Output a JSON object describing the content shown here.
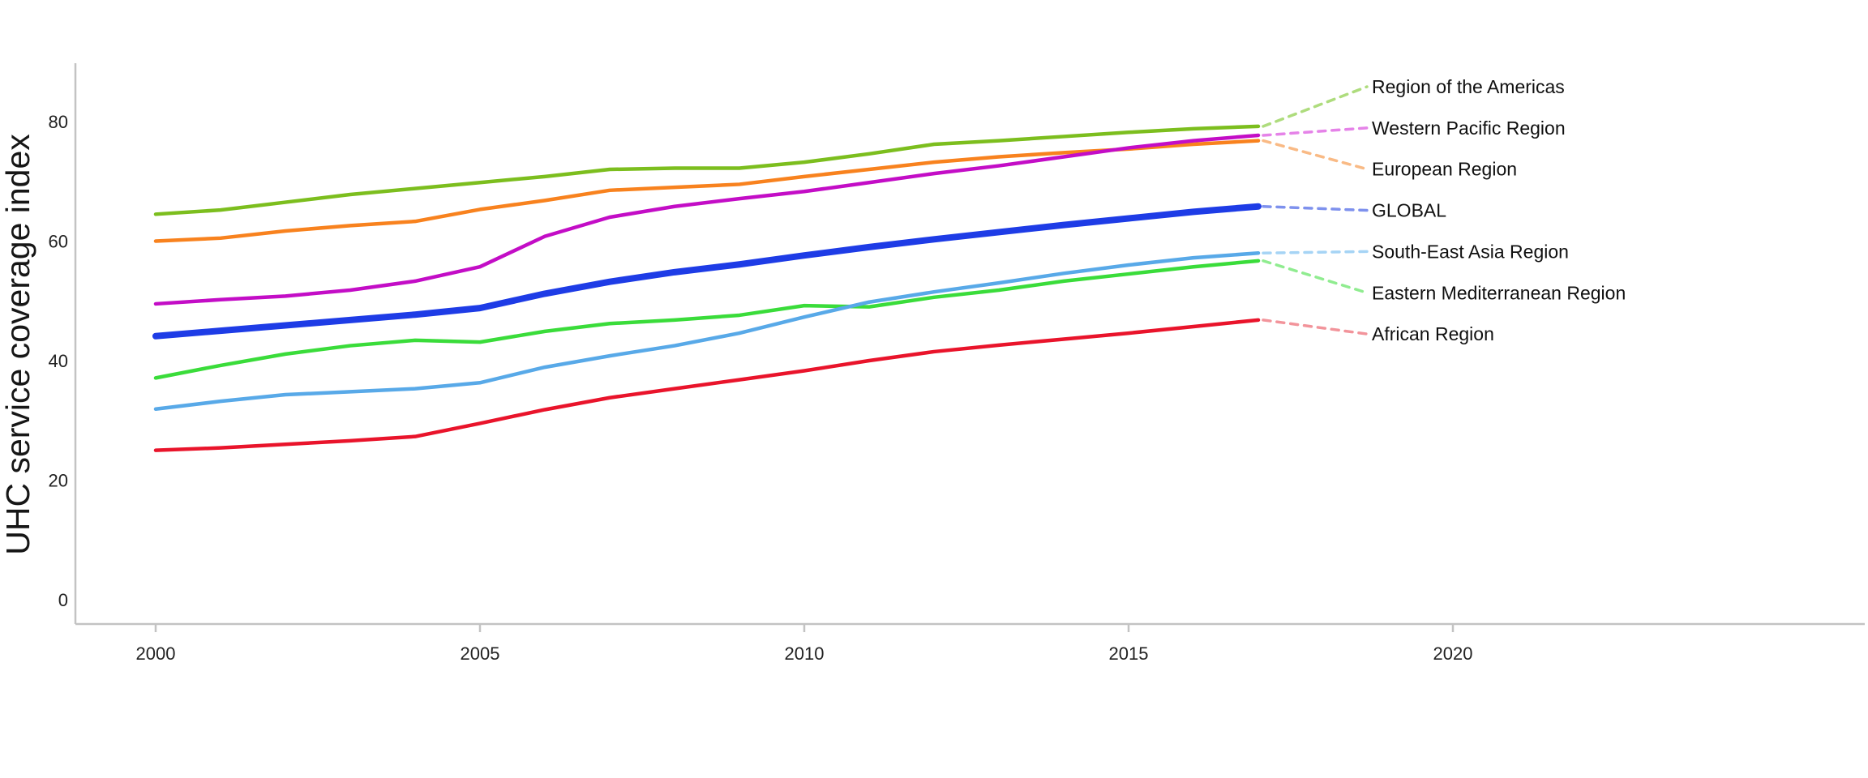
{
  "page": {
    "background": "#ffffff"
  },
  "chart_data": {
    "type": "line",
    "title": "",
    "xlabel": "",
    "ylabel": "UHC service coverage index",
    "x": [
      2000,
      2001,
      2002,
      2003,
      2004,
      2005,
      2006,
      2007,
      2008,
      2009,
      2010,
      2011,
      2012,
      2013,
      2014,
      2015,
      2016,
      2017
    ],
    "x_axis_ticks": [
      2000,
      2005,
      2010,
      2015,
      2020
    ],
    "y_axis_ticks": [
      0,
      20,
      40,
      60,
      80
    ],
    "xlim": [
      2000,
      2020
    ],
    "ylim": [
      0,
      88
    ],
    "grid": false,
    "legend_position": "right-edge direct labels connected by dashed leader lines",
    "axis_color": "#C3C3C3",
    "tick_label_color": "#222222",
    "series": [
      {
        "name": "Region of the Americas",
        "color": "#7CBE1E",
        "leader_color": "#AEDC7D",
        "line_width": 4.5,
        "values": [
          64.5,
          65.2,
          66.5,
          67.8,
          68.8,
          69.8,
          70.8,
          72.0,
          72.2,
          72.2,
          73.2,
          74.6,
          76.2,
          76.8,
          77.5,
          78.2,
          78.8,
          79.2
        ]
      },
      {
        "name": "Western Pacific Region",
        "color": "#C30DC6",
        "leader_color": "#E583E8",
        "line_width": 4.5,
        "values": [
          49.5,
          50.2,
          50.8,
          51.8,
          53.3,
          55.7,
          60.8,
          64.0,
          65.8,
          67.1,
          68.3,
          69.8,
          71.3,
          72.6,
          74.1,
          75.6,
          76.8,
          77.7
        ]
      },
      {
        "name": "European Region",
        "color": "#F8821E",
        "leader_color": "#F9BA85",
        "line_width": 4.5,
        "values": [
          60.0,
          60.5,
          61.7,
          62.6,
          63.3,
          65.3,
          66.8,
          68.5,
          69.0,
          69.5,
          70.8,
          72.0,
          73.2,
          74.1,
          74.8,
          75.4,
          76.2,
          76.8
        ]
      },
      {
        "name": "GLOBAL",
        "color": "#1E3CE6",
        "leader_color": "#7E91ED",
        "line_width": 8,
        "values": [
          44.1,
          45.0,
          45.9,
          46.8,
          47.7,
          48.8,
          51.2,
          53.2,
          54.8,
          56.1,
          57.6,
          59.0,
          60.3,
          61.5,
          62.7,
          63.8,
          64.9,
          65.8
        ]
      },
      {
        "name": "South-East Asia Region",
        "color": "#58A9E8",
        "leader_color": "#A6D4F5",
        "line_width": 4.5,
        "values": [
          31.9,
          33.2,
          34.3,
          34.8,
          35.3,
          36.3,
          38.9,
          40.8,
          42.5,
          44.6,
          47.3,
          49.8,
          51.5,
          53.0,
          54.6,
          56.0,
          57.2,
          58.0
        ]
      },
      {
        "name": "Eastern Mediterranean Region",
        "color": "#3ADC3A",
        "leader_color": "#90EC90",
        "line_width": 4.5,
        "values": [
          37.1,
          39.2,
          41.1,
          42.5,
          43.4,
          43.1,
          44.9,
          46.2,
          46.8,
          47.6,
          49.2,
          49.0,
          50.6,
          51.8,
          53.3,
          54.5,
          55.7,
          56.7
        ]
      },
      {
        "name": "African Region",
        "color": "#E9142B",
        "leader_color": "#F2949B",
        "line_width": 4.5,
        "values": [
          25.0,
          25.4,
          26.0,
          26.6,
          27.3,
          29.5,
          31.8,
          33.8,
          35.3,
          36.8,
          38.3,
          40.0,
          41.5,
          42.6,
          43.6,
          44.6,
          45.7,
          46.8
        ]
      }
    ]
  }
}
